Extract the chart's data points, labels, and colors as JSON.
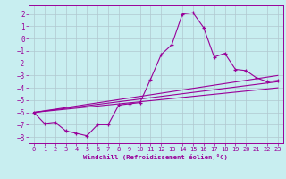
{
  "xlabel": "Windchill (Refroidissement éolien,°C)",
  "bg_color": "#c8eef0",
  "grid_color": "#b0c8d0",
  "line_color": "#990099",
  "xlim": [
    -0.5,
    23.5
  ],
  "ylim": [
    -8.5,
    2.7
  ],
  "xticks": [
    0,
    1,
    2,
    3,
    4,
    5,
    6,
    7,
    8,
    9,
    10,
    11,
    12,
    13,
    14,
    15,
    16,
    17,
    18,
    19,
    20,
    21,
    22,
    23
  ],
  "yticks": [
    -8,
    -7,
    -6,
    -5,
    -4,
    -3,
    -2,
    -1,
    0,
    1,
    2
  ],
  "line1_x": [
    0,
    1,
    2,
    3,
    4,
    5,
    6,
    7,
    8,
    9,
    10,
    11,
    12,
    13,
    14,
    15,
    16,
    17,
    18,
    19,
    20,
    21,
    22,
    23
  ],
  "line1_y": [
    -6.0,
    -6.9,
    -6.8,
    -7.5,
    -7.7,
    -7.9,
    -7.0,
    -7.0,
    -5.4,
    -5.3,
    -5.2,
    -3.3,
    -1.3,
    -0.5,
    2.0,
    2.1,
    0.9,
    -1.5,
    -1.2,
    -2.5,
    -2.6,
    -3.2,
    -3.5,
    -3.4
  ],
  "line2_x": [
    0,
    23
  ],
  "line2_y": [
    -6.0,
    -3.5
  ],
  "line3_x": [
    0,
    23
  ],
  "line3_y": [
    -6.0,
    -3.0
  ],
  "line4_x": [
    0,
    23
  ],
  "line4_y": [
    -6.0,
    -4.0
  ]
}
